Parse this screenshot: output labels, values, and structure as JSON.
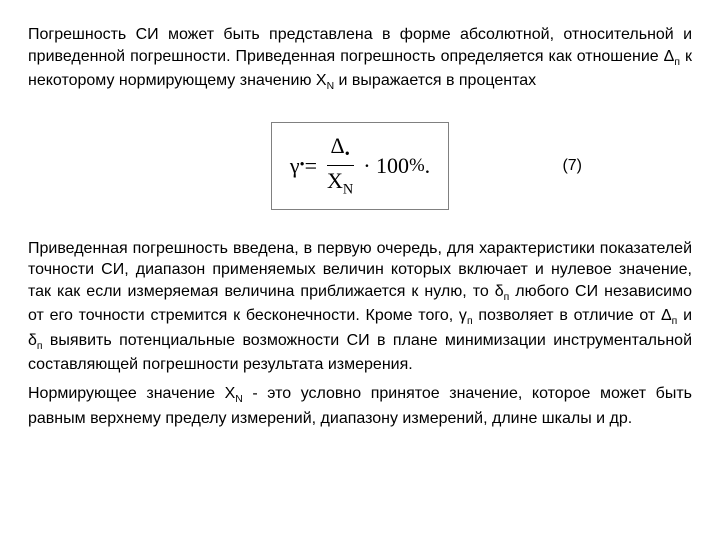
{
  "document": {
    "paragraph1": "Погрешность СИ может быть представлена в форме абсолютной, относительной и приведенной погрешности. Приведенная погрешность определяется как отношение Δ",
    "paragraph1_sub": "п",
    "paragraph1_cont": " к некоторому нормирующему значению X",
    "paragraph1_sub2": "N",
    "paragraph1_end": " и выражается в процентах",
    "formula": {
      "gamma": "γ",
      "gamma_sub": "•",
      "equals": " = ",
      "delta": "Δ",
      "delta_sub": "•",
      "x": "X",
      "x_sub": "N",
      "mult": " · 100 ",
      "percent": "%",
      "period": " .",
      "number": "(7)"
    },
    "paragraph2": "Приведенная погрешность введена, в первую очередь, для характеристики показателей точности СИ, диапазон применяемых величин которых включает и нулевое значение, так как если измеряемая величина приближается к нулю, то δ",
    "paragraph2_sub1": "п",
    "paragraph2_cont1": " любого СИ независимо от его точности стремится к бесконечности. Кроме того, γ",
    "paragraph2_sub2": "п",
    "paragraph2_cont2": " позволяет в отличие от Δ",
    "paragraph2_sub3": "п",
    "paragraph2_cont3": " и δ",
    "paragraph2_sub4": "п",
    "paragraph2_cont4": " выявить потенциальные возможности СИ в плане минимизации инструментальной составляющей погрешности результата измерения.",
    "paragraph3": "Нормирующее значение X",
    "paragraph3_sub": "N",
    "paragraph3_cont": " - это условно принятое значение, которое может быть равным верхнему пределу измерений, диапазону измерений, длине шкалы и др.",
    "colors": {
      "background": "#ffffff",
      "text": "#000000",
      "border": "#808080"
    },
    "fontsize_body": 16,
    "fontsize_formula": 22
  }
}
